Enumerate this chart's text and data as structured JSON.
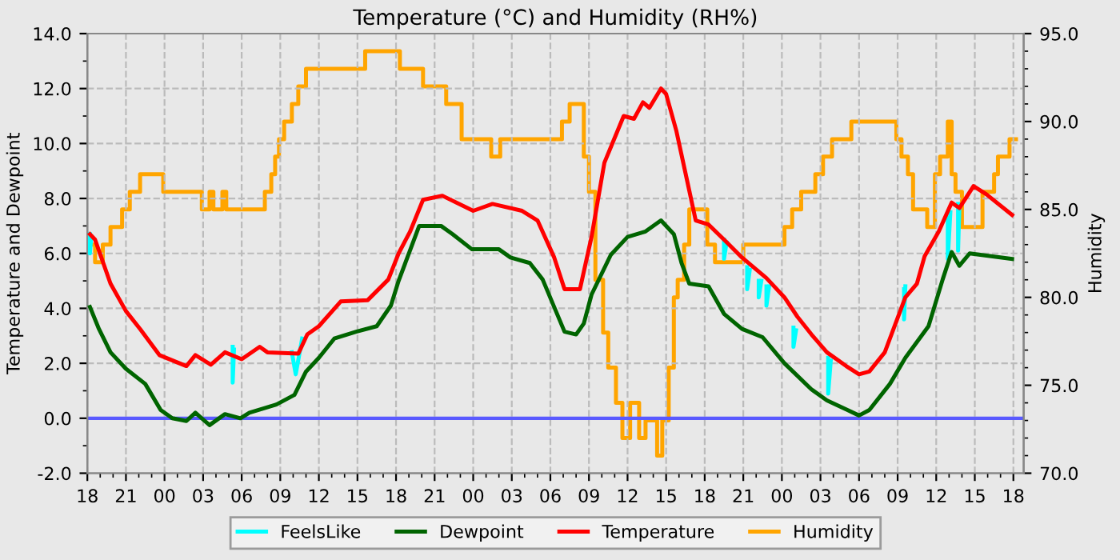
{
  "chart_data": {
    "type": "line",
    "title": "Temperature (°C) and Humidity (RH%)",
    "ylabel": "Temperature and Dewpoint",
    "y2label": "Humidity",
    "xlim": [
      18,
      90.8
    ],
    "xticks": [
      18,
      21,
      {
        "value": 24,
        "label": "00"
      },
      {
        "value": 27,
        "label": "03"
      },
      {
        "value": 30,
        "label": "06"
      },
      {
        "value": 33,
        "label": "09"
      },
      {
        "value": 36,
        "label": "12"
      },
      {
        "value": 39,
        "label": "15"
      },
      {
        "value": 42,
        "label": "18"
      },
      {
        "value": 45,
        "label": "21"
      },
      {
        "value": 48,
        "label": "00"
      },
      {
        "value": 51,
        "label": "03"
      },
      {
        "value": 54,
        "label": "06"
      },
      {
        "value": 57,
        "label": "09"
      },
      {
        "value": 60,
        "label": "12"
      },
      {
        "value": 63,
        "label": "15"
      },
      {
        "value": 66,
        "label": "18"
      },
      {
        "value": 69,
        "label": "21"
      },
      {
        "value": 72,
        "label": "00"
      },
      {
        "value": 75,
        "label": "03"
      },
      {
        "value": 78,
        "label": "06"
      },
      {
        "value": 81,
        "label": "09"
      },
      {
        "value": 84,
        "label": "12"
      },
      {
        "value": 87,
        "label": "15"
      },
      {
        "value": 90,
        "label": "18"
      }
    ],
    "ylim": [
      -2,
      14
    ],
    "yticks": [
      {
        "value": -2,
        "label": "-2.0"
      },
      {
        "value": 0,
        "label": "0.0"
      },
      {
        "value": 2,
        "label": "2.0"
      },
      {
        "value": 4,
        "label": "4.0"
      },
      {
        "value": 6,
        "label": "6.0"
      },
      {
        "value": 8,
        "label": "8.0"
      },
      {
        "value": 10,
        "label": "10.0"
      },
      {
        "value": 12,
        "label": "12.0"
      },
      {
        "value": 14,
        "label": "14.0"
      }
    ],
    "y2lim": [
      70,
      95
    ],
    "y2ticks": [
      {
        "value": 70,
        "label": "70.0"
      },
      {
        "value": 75,
        "label": "75.0"
      },
      {
        "value": 80,
        "label": "80.0"
      },
      {
        "value": 85,
        "label": "85.0"
      },
      {
        "value": 90,
        "label": "90.0"
      },
      {
        "value": 95,
        "label": "95.0"
      }
    ],
    "grid": true,
    "legend": "bottom",
    "ref_lines": [
      {
        "axis": "y",
        "value": 0,
        "color": "#5a5aff"
      }
    ],
    "series": [
      {
        "name": "FeelsLike",
        "color": "#00ffff",
        "x": [
          18.2,
          18.2,
          18.3,
          null,
          29.3,
          29.3,
          29.4,
          null,
          33.9,
          34.2,
          34.7,
          null,
          67.5,
          67.5,
          67.7,
          null,
          69.3,
          69.3,
          69.5,
          null,
          70.2,
          70.2,
          70.4,
          null,
          70.8,
          70.8,
          71.0,
          null,
          72.9,
          72.9,
          73.1,
          null,
          75.6,
          75.6,
          75.8,
          null,
          81.5,
          81.5,
          81.6,
          null,
          84.9,
          84.9,
          85.1,
          null,
          85.7,
          85.7,
          85.8
        ],
        "values": [
          6.7,
          6.0,
          6.6,
          null,
          2.6,
          1.3,
          2.5,
          null,
          2.4,
          1.6,
          2.9,
          null,
          6.5,
          5.8,
          6.4,
          null,
          5.5,
          4.7,
          5.4,
          null,
          5.0,
          4.4,
          5.0,
          null,
          4.8,
          4.1,
          4.8,
          null,
          3.3,
          2.6,
          3.2,
          null,
          2.2,
          0.9,
          2.1,
          null,
          4.7,
          3.6,
          4.8,
          null,
          7.3,
          5.8,
          7.5,
          null,
          7.8,
          6.1,
          7.7
        ]
      },
      {
        "name": "Dewpoint",
        "color": "#006400",
        "x": [
          18.2,
          18.9,
          19.8,
          21.0,
          22.5,
          23.7,
          24.6,
          25.7,
          26.4,
          27.5,
          28.7,
          29.9,
          30.6,
          32.7,
          34.1,
          35.0,
          36.0,
          37.2,
          38.9,
          40.5,
          41.6,
          42.2,
          43.8,
          45.5,
          46.4,
          47.9,
          50.0,
          50.9,
          52.4,
          53.4,
          55.1,
          56.0,
          56.6,
          57.2,
          58.7,
          60.0,
          61.4,
          62.6,
          63.6,
          64.2,
          64.8,
          66.3,
          67.5,
          68.9,
          70.5,
          72.2,
          74.3,
          75.5,
          77.1,
          78.0,
          78.8,
          80.4,
          81.6,
          83.4,
          84.5,
          85.2,
          85.8,
          86.6,
          89.9
        ],
        "values": [
          4.05,
          3.25,
          2.4,
          1.8,
          1.25,
          0.3,
          0.0,
          -0.1,
          0.2,
          -0.25,
          0.15,
          0.0,
          0.2,
          0.5,
          0.85,
          1.7,
          2.2,
          2.9,
          3.15,
          3.35,
          4.1,
          5.0,
          7.0,
          7.0,
          6.7,
          6.15,
          6.15,
          5.85,
          5.65,
          5.05,
          3.15,
          3.05,
          3.45,
          4.5,
          5.95,
          6.6,
          6.8,
          7.2,
          6.7,
          5.65,
          4.9,
          4.8,
          3.8,
          3.25,
          2.95,
          2.0,
          1.05,
          0.65,
          0.3,
          0.1,
          0.3,
          1.25,
          2.2,
          3.35,
          5.05,
          6.05,
          5.55,
          6.0,
          5.8
        ]
      },
      {
        "name": "Temperature",
        "color": "#ff0000",
        "x": [
          18.2,
          18.6,
          19.8,
          21.0,
          22.1,
          23.6,
          25.7,
          26.4,
          27.6,
          28.7,
          30.0,
          31.4,
          32.0,
          34.4,
          35.1,
          36.0,
          37.7,
          39.8,
          41.4,
          42.2,
          43.1,
          44.1,
          45.6,
          48.0,
          49.5,
          51.8,
          53.0,
          54.3,
          55.1,
          56.3,
          57.2,
          58.2,
          59.7,
          60.5,
          61.2,
          61.7,
          62.6,
          63.0,
          63.8,
          64.7,
          65.3,
          66.3,
          67.5,
          68.9,
          70.8,
          72.2,
          73.2,
          74.3,
          75.5,
          77.0,
          78.0,
          78.8,
          80.0,
          81.6,
          82.5,
          83.1,
          84.2,
          85.2,
          85.8,
          86.9,
          87.9,
          89.9
        ],
        "values": [
          6.7,
          6.5,
          4.9,
          3.9,
          3.25,
          2.3,
          1.9,
          2.3,
          1.95,
          2.4,
          2.15,
          2.6,
          2.4,
          2.35,
          3.05,
          3.35,
          4.25,
          4.3,
          5.05,
          6.0,
          6.8,
          7.95,
          8.1,
          7.55,
          7.8,
          7.55,
          7.2,
          5.85,
          4.7,
          4.7,
          6.6,
          9.3,
          11.0,
          10.9,
          11.5,
          11.3,
          12.0,
          11.8,
          10.45,
          8.5,
          7.2,
          7.05,
          6.5,
          5.85,
          5.1,
          4.4,
          3.7,
          3.05,
          2.4,
          1.9,
          1.6,
          1.7,
          2.4,
          4.4,
          4.9,
          5.9,
          6.8,
          7.85,
          7.65,
          8.45,
          8.15,
          7.4
        ]
      },
      {
        "name": "Humidity",
        "color": "#ffa500",
        "type": "step",
        "axis": "y2",
        "x": [
          18.0,
          18.6,
          19.2,
          19.8,
          20.7,
          21.3,
          22.1,
          23.9,
          26.9,
          27.5,
          27.8,
          28.5,
          28.8,
          31.8,
          32.3,
          32.6,
          32.9,
          33.3,
          33.9,
          34.4,
          35.0,
          39.6,
          42.3,
          44.1,
          45.9,
          47.1,
          49.4,
          50.1,
          54.9,
          55.5,
          56.6,
          56.9,
          57.0,
          57.5,
          58.1,
          58.5,
          59.1,
          59.6,
          60.2,
          60.9,
          61.4,
          62.3,
          62.7,
          63.2,
          63.6,
          63.9,
          64.4,
          64.8,
          65.3,
          66.2,
          66.8,
          69.0,
          72.2,
          72.8,
          73.5,
          74.6,
          75.2,
          75.9,
          77.4,
          80.9,
          81.3,
          81.8,
          82.2,
          83.3,
          83.9,
          84.3,
          84.9,
          85.2,
          85.5,
          86.0,
          87.0,
          87.6,
          88.5,
          88.8,
          89.7,
          90.2
        ],
        "values": [
          83,
          82,
          83,
          84,
          85,
          86,
          87,
          86,
          85,
          86,
          85,
          86,
          85,
          86,
          87,
          88,
          89,
          90,
          91,
          92,
          93,
          94,
          93,
          92,
          91,
          89,
          88,
          89,
          90,
          91,
          88,
          88,
          86,
          81,
          78,
          76,
          74,
          72,
          74,
          72,
          73,
          71,
          73,
          76,
          80,
          81,
          83,
          85,
          85,
          83,
          82,
          83,
          84,
          85,
          86,
          87,
          88,
          89,
          90,
          89,
          88,
          87,
          85,
          84,
          87,
          88,
          90,
          87,
          86,
          84,
          84,
          86,
          87,
          88,
          89,
          89
        ]
      }
    ]
  }
}
